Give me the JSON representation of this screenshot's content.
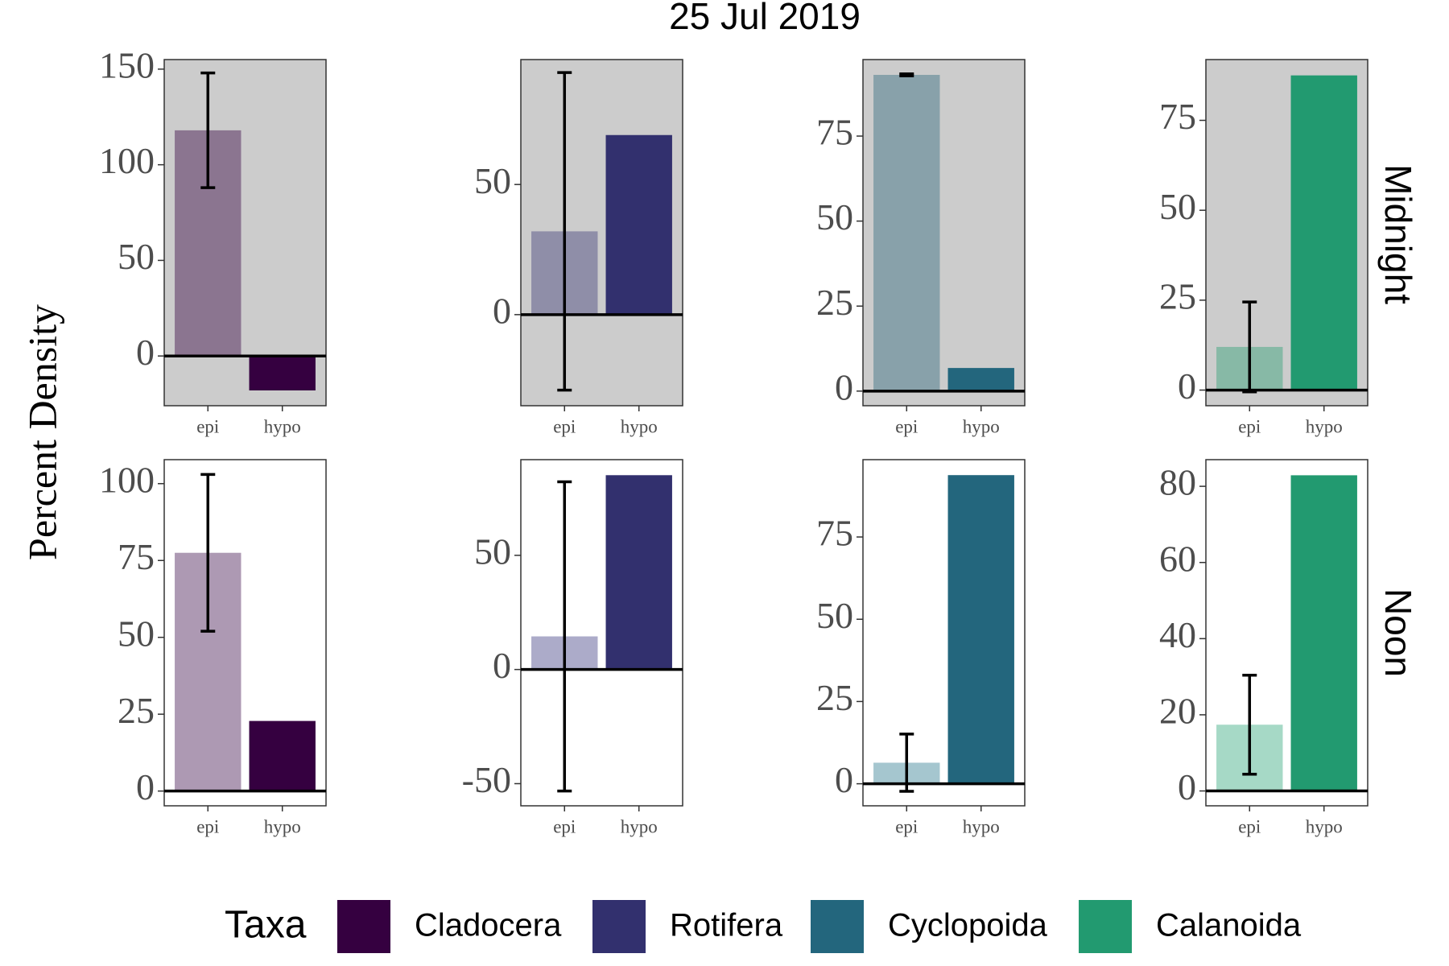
{
  "title": "25 Jul 2019",
  "y_label": "Percent Density",
  "rows": [
    "Midnight",
    "Noon"
  ],
  "legend": {
    "title": "Taxa",
    "entries": [
      {
        "name": "Cladocera",
        "color": "#350040"
      },
      {
        "name": "Rotifera",
        "color": "#32306e"
      },
      {
        "name": "Cyclopoida",
        "color": "#23667d"
      },
      {
        "name": "Calanoida",
        "color": "#229a70"
      }
    ]
  },
  "chart_data": [
    {
      "type": "bar",
      "categories": [
        "epi",
        "hypo"
      ],
      "values": [
        118,
        -18
      ],
      "errors": [
        30,
        null
      ],
      "colors": [
        "#8b7590",
        "#350040"
      ],
      "background": "#cccccc",
      "ylim": [
        -26,
        155
      ],
      "yticks": [
        0,
        50,
        100,
        150
      ]
    },
    {
      "type": "bar",
      "categories": [
        "epi",
        "hypo"
      ],
      "values": [
        32,
        69
      ],
      "errors": [
        61,
        null
      ],
      "colors": [
        "#8f8ea8",
        "#32306e"
      ],
      "background": "#cccccc",
      "ylim": [
        -35,
        98
      ],
      "yticks": [
        0,
        50
      ]
    },
    {
      "type": "bar",
      "categories": [
        "epi",
        "hypo"
      ],
      "values": [
        93,
        6.8
      ],
      "errors": [
        0.3,
        null
      ],
      "colors": [
        "#88a1aa",
        "#23667d"
      ],
      "background": "#cccccc",
      "ylim": [
        -4.3,
        97.5
      ],
      "yticks": [
        0,
        25,
        50,
        75
      ]
    },
    {
      "type": "bar",
      "categories": [
        "epi",
        "hypo"
      ],
      "values": [
        12,
        87.5
      ],
      "errors": [
        12.5,
        null
      ],
      "colors": [
        "#87b9a6",
        "#229a70"
      ],
      "background": "#cccccc",
      "ylim": [
        -4.35,
        91.9
      ],
      "yticks": [
        0,
        25,
        50,
        75
      ]
    },
    {
      "type": "bar",
      "categories": [
        "epi",
        "hypo"
      ],
      "values": [
        77.5,
        22.8
      ],
      "errors": [
        25.5,
        null
      ],
      "colors": [
        "#ad99b3",
        "#350040"
      ],
      "background": "#ffffff",
      "ylim": [
        -4.8,
        107.8
      ],
      "yticks": [
        0,
        25,
        50,
        75,
        100
      ]
    },
    {
      "type": "bar",
      "categories": [
        "epi",
        "hypo"
      ],
      "values": [
        14.5,
        85.1
      ],
      "errors": [
        67.7,
        null
      ],
      "colors": [
        "#acabc9",
        "#32306e"
      ],
      "background": "#ffffff",
      "ylim": [
        -59.7,
        91.9
      ],
      "yticks": [
        -50,
        0,
        50
      ]
    },
    {
      "type": "bar",
      "categories": [
        "epi",
        "hypo"
      ],
      "values": [
        6.4,
        93.8
      ],
      "errors": [
        8.7,
        null
      ],
      "colors": [
        "#a5c6cf",
        "#23667d"
      ],
      "background": "#ffffff",
      "ylim": [
        -6.7,
        98.5
      ],
      "yticks": [
        0,
        25,
        50,
        75
      ]
    },
    {
      "type": "bar",
      "categories": [
        "epi",
        "hypo"
      ],
      "values": [
        17.4,
        82.9
      ],
      "errors": [
        13,
        null
      ],
      "colors": [
        "#a6d9c6",
        "#229a70"
      ],
      "background": "#ffffff",
      "ylim": [
        -3.9,
        87
      ],
      "yticks": [
        0,
        20,
        40,
        60,
        80
      ]
    }
  ]
}
